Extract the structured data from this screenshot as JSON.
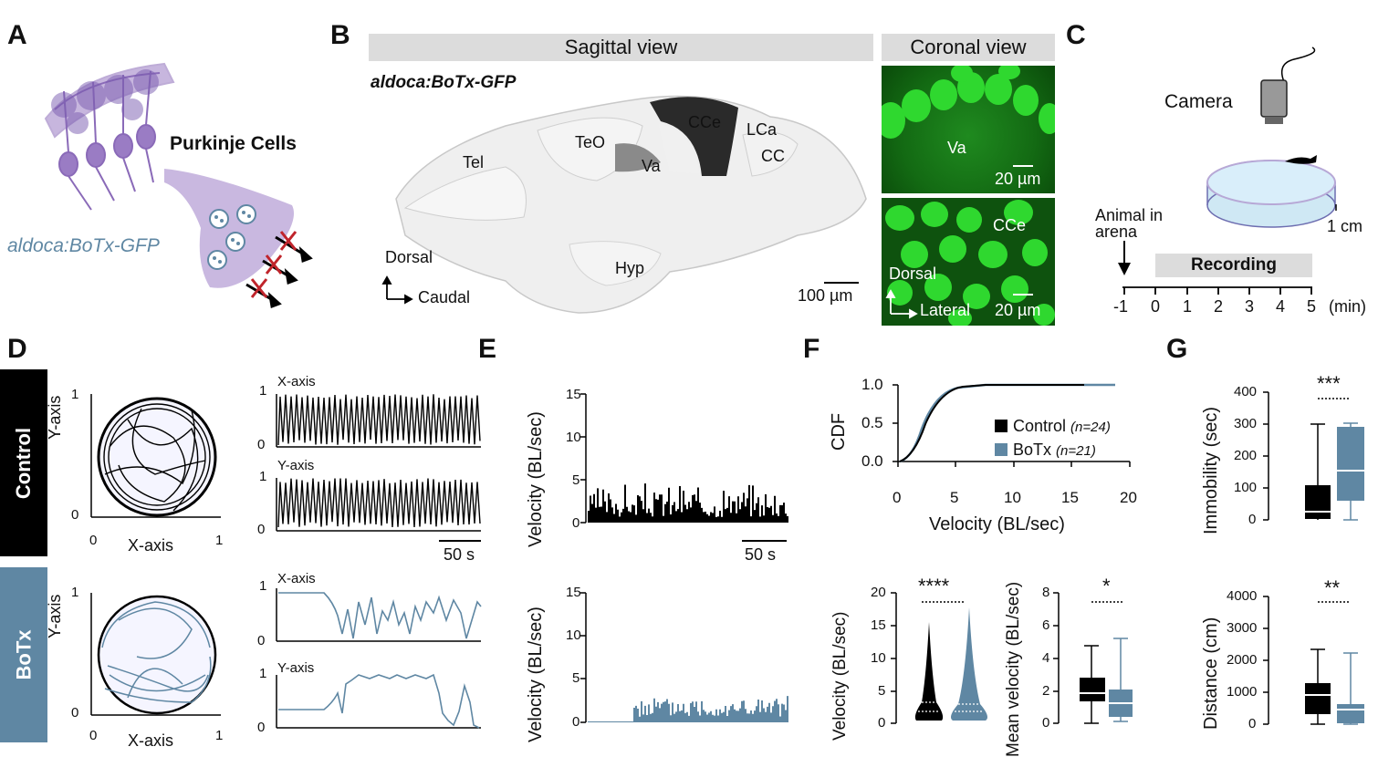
{
  "panels": {
    "A": "A",
    "B": "B",
    "C": "C",
    "D": "D",
    "E": "E",
    "F": "F",
    "G": "G"
  },
  "A": {
    "cell_label": "Purkinje Cells",
    "genotype": "aldoca:BoTx-GFP"
  },
  "B": {
    "sagittal_title": "Sagittal view",
    "coronal_title": "Coronal view",
    "genotype": "aldoca:BoTx-GFP",
    "regions": {
      "tel": "Tel",
      "teo": "TeO",
      "va": "Va",
      "cce": "CCe",
      "lca": "LCa",
      "cc": "CC",
      "hyp": "Hyp"
    },
    "axis_dorsal": "Dorsal",
    "axis_caudal": "Caudal",
    "scale_sagittal": "100 µm",
    "coronal_top": {
      "region": "Va",
      "scale": "20 µm"
    },
    "coronal_bottom": {
      "region": "CCe",
      "dorsal": "Dorsal",
      "lateral": "Lateral",
      "scale": "20 µm"
    }
  },
  "C": {
    "camera": "Camera",
    "scale": "1 cm",
    "animal_label_1": "Animal in",
    "animal_label_2": "arena",
    "recording": "Recording",
    "ticks": [
      "-1",
      "0",
      "1",
      "2",
      "3",
      "4",
      "5"
    ],
    "unit": "(min)"
  },
  "D": {
    "control_label": "Control",
    "botx_label": "BoTx",
    "y_axis": "Y-axis",
    "x_axis": "X-axis",
    "x_trace": "X-axis",
    "y_trace": "Y-axis",
    "tick0": "0",
    "tick1": "1",
    "scale": "50 s"
  },
  "E": {
    "ylabel": "Velocity (BL/sec)",
    "ticks": [
      "0",
      "5",
      "10",
      "15"
    ],
    "scale": "50 s"
  },
  "F": {
    "cdf_ylabel": "CDF",
    "cdf_xlabel": "Velocity (BL/sec)",
    "cdf_yticks": [
      "0.0",
      "0.5",
      "1.0"
    ],
    "cdf_xticks": [
      "0",
      "5",
      "10",
      "15",
      "20"
    ],
    "legend_control": "Control",
    "legend_control_n": "(n=24)",
    "legend_botx": "BoTx",
    "legend_botx_n": "(n=21)",
    "violin_ylabel": "Velocity (BL/sec)",
    "violin_ticks": [
      "0",
      "5",
      "10",
      "15",
      "20"
    ],
    "violin_sig": "****",
    "box_ylabel": "Mean velocity (BL/sec)",
    "box_ticks": [
      "0",
      "2",
      "4",
      "6",
      "8"
    ],
    "box_sig": "*"
  },
  "G": {
    "immob_ylabel": "Immobility (sec)",
    "immob_ticks": [
      "0",
      "100",
      "200",
      "300",
      "400"
    ],
    "immob_sig": "***",
    "dist_ylabel": "Distance (cm)",
    "dist_ticks": [
      "0",
      "1000",
      "2000",
      "3000",
      "4000"
    ],
    "dist_sig": "**"
  },
  "colors": {
    "control": "#000000",
    "botx": "#5f87a3",
    "gfp": "#2fd82f",
    "purkinje": "#9a7cc4",
    "grey_bar": "#dcdcdc"
  }
}
